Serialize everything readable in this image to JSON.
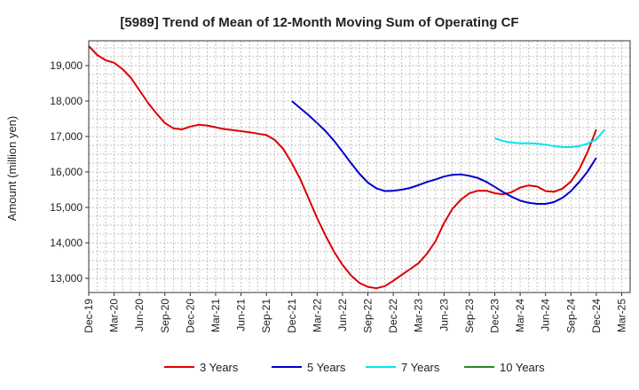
{
  "chart_data": {
    "type": "line",
    "title": "[5989]  Trend of Mean of 12-Month Moving Sum of Operating CF",
    "xlabel": "",
    "ylabel": "Amount (million yen)",
    "ylim": [
      12600,
      19700
    ],
    "yticks": [
      13000,
      14000,
      15000,
      16000,
      17000,
      18000,
      19000
    ],
    "ytick_labels": [
      "13,000",
      "14,000",
      "15,000",
      "16,000",
      "17,000",
      "18,000",
      "19,000"
    ],
    "xtick_labels": [
      "Dec-19",
      "Mar-20",
      "Jun-20",
      "Sep-20",
      "Dec-20",
      "Mar-21",
      "Jun-21",
      "Sep-21",
      "Dec-21",
      "Mar-22",
      "Jun-22",
      "Sep-22",
      "Dec-22",
      "Mar-23",
      "Jun-23",
      "Sep-23",
      "Dec-23",
      "Mar-24",
      "Jun-24",
      "Sep-24",
      "Dec-24",
      "Mar-25"
    ],
    "x_start": "Dec-19",
    "n_months": 64,
    "grid": true,
    "legend_position": "bottom",
    "series": [
      {
        "name": "3 Years",
        "color": "#dd0000",
        "start_month": 0,
        "values": [
          19550,
          19300,
          19150,
          19080,
          18900,
          18650,
          18300,
          17950,
          17650,
          17380,
          17230,
          17200,
          17280,
          17330,
          17310,
          17260,
          17210,
          17180,
          17150,
          17120,
          17080,
          17040,
          16900,
          16650,
          16250,
          15800,
          15250,
          14700,
          14200,
          13750,
          13380,
          13080,
          12870,
          12760,
          12720,
          12780,
          12930,
          13100,
          13260,
          13430,
          13700,
          14050,
          14560,
          14960,
          15220,
          15400,
          15470,
          15470,
          15400,
          15370,
          15430,
          15560,
          15620,
          15590,
          15460,
          15440,
          15530,
          15730,
          16080,
          16580,
          17200
        ]
      },
      {
        "name": "5 Years",
        "color": "#0000cc",
        "start_month": 24,
        "values": [
          18000,
          17800,
          17600,
          17380,
          17150,
          16880,
          16570,
          16250,
          15950,
          15700,
          15540,
          15460,
          15470,
          15500,
          15550,
          15630,
          15720,
          15790,
          15870,
          15920,
          15930,
          15890,
          15830,
          15720,
          15580,
          15430,
          15300,
          15190,
          15130,
          15100,
          15100,
          15150,
          15270,
          15460,
          15720,
          16020,
          16400
        ]
      },
      {
        "name": "7 Years",
        "color": "#00e5ee",
        "start_month": 48,
        "values": [
          16950,
          16870,
          16830,
          16810,
          16810,
          16800,
          16770,
          16730,
          16700,
          16700,
          16730,
          16800,
          16920,
          17200
        ]
      },
      {
        "name": "10 Years",
        "color": "#228b22",
        "start_month": 60,
        "values": []
      }
    ]
  }
}
